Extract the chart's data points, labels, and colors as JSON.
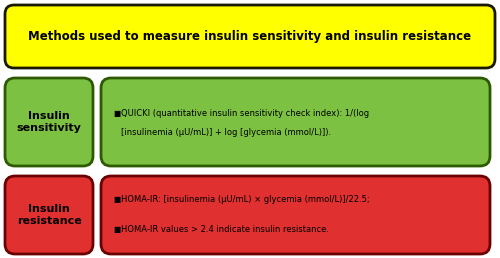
{
  "title": "Methods used to measure insulin sensitivity and insulin resistance",
  "title_bg": "#FFFF00",
  "title_border": "#1a1a00",
  "sensitivity_label": "Insulin\nsensitivity",
  "sensitivity_bg": "#7DC142",
  "sensitivity_border": "#2d5a00",
  "sensitivity_text_line1": "QUICKI (quantitative insulin sensitivity check index): 1/(log",
  "sensitivity_text_line2": "[insulinemia (μU/mL)] + log [glycemia (mmol/L)]).",
  "resistance_label": "Insulin\nresistance",
  "resistance_bg": "#E03030",
  "resistance_border": "#6b0000",
  "resistance_text1": "HOMA-IR: [insulinemia (μU/mL) × glycemia (mmol/L)]/22.5;",
  "resistance_text2": "HOMA-IR values > 2.4 indicate insulin resistance.",
  "bg_color": "#FFFFFF"
}
